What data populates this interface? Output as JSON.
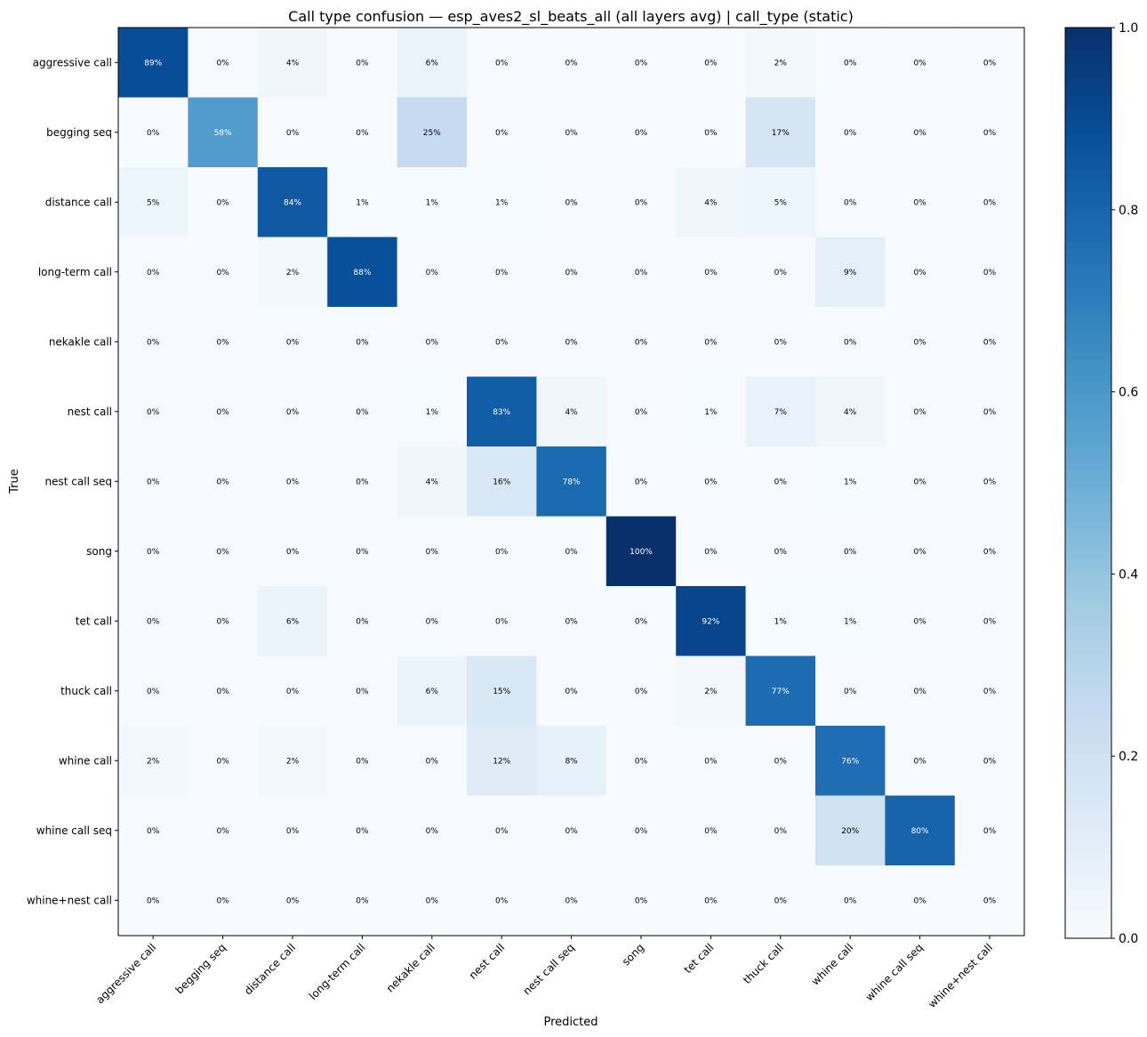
{
  "chart_data": {
    "type": "heatmap",
    "title": "Call type confusion — esp_aves2_sl_beats_all (all layers avg) | call_type (static)",
    "xlabel": "Predicted",
    "ylabel": "True",
    "x_categories": [
      "aggressive call",
      "begging seq",
      "distance call",
      "long-term call",
      "nekakle call",
      "nest call",
      "nest call seq",
      "song",
      "tet call",
      "thuck call",
      "whine call",
      "whine call seq",
      "whine+nest call"
    ],
    "y_categories": [
      "aggressive call",
      "begging seq",
      "distance call",
      "long-term call",
      "nekakle call",
      "nest call",
      "nest call seq",
      "song",
      "tet call",
      "thuck call",
      "whine call",
      "whine call seq",
      "whine+nest call"
    ],
    "values": [
      [
        0.89,
        0,
        0.04,
        0,
        0.06,
        0,
        0,
        0,
        0,
        0.02,
        0,
        0,
        0
      ],
      [
        0,
        0.58,
        0,
        0,
        0.25,
        0,
        0,
        0,
        0,
        0.17,
        0,
        0,
        0
      ],
      [
        0.05,
        0,
        0.84,
        0.01,
        0.01,
        0.01,
        0,
        0,
        0.04,
        0.05,
        0,
        0,
        0
      ],
      [
        0,
        0,
        0.02,
        0.88,
        0,
        0,
        0,
        0,
        0,
        0,
        0.09,
        0,
        0
      ],
      [
        0,
        0,
        0,
        0,
        0,
        0,
        0,
        0,
        0,
        0,
        0,
        0,
        0
      ],
      [
        0,
        0,
        0,
        0,
        0.01,
        0.83,
        0.04,
        0,
        0.01,
        0.07,
        0.04,
        0,
        0
      ],
      [
        0,
        0,
        0,
        0,
        0.04,
        0.16,
        0.78,
        0,
        0,
        0,
        0.01,
        0,
        0
      ],
      [
        0,
        0,
        0,
        0,
        0,
        0,
        0,
        1.0,
        0,
        0,
        0,
        0,
        0
      ],
      [
        0,
        0,
        0.06,
        0,
        0,
        0,
        0,
        0,
        0.92,
        0.01,
        0.01,
        0,
        0
      ],
      [
        0,
        0,
        0,
        0,
        0.06,
        0.15,
        0,
        0,
        0.02,
        0.77,
        0,
        0,
        0
      ],
      [
        0.02,
        0,
        0.02,
        0,
        0,
        0.12,
        0.08,
        0,
        0,
        0,
        0.76,
        0,
        0
      ],
      [
        0,
        0,
        0,
        0,
        0,
        0,
        0,
        0,
        0,
        0,
        0.2,
        0.8,
        0
      ],
      [
        0,
        0,
        0,
        0,
        0,
        0,
        0,
        0,
        0,
        0,
        0,
        0,
        0
      ]
    ],
    "cell_labels": [
      [
        "89%",
        "0%",
        "4%",
        "0%",
        "6%",
        "0%",
        "0%",
        "0%",
        "0%",
        "2%",
        "0%",
        "0%",
        "0%"
      ],
      [
        "0%",
        "58%",
        "0%",
        "0%",
        "25%",
        "0%",
        "0%",
        "0%",
        "0%",
        "17%",
        "0%",
        "0%",
        "0%"
      ],
      [
        "5%",
        "0%",
        "84%",
        "1%",
        "1%",
        "1%",
        "0%",
        "0%",
        "4%",
        "5%",
        "0%",
        "0%",
        "0%"
      ],
      [
        "0%",
        "0%",
        "2%",
        "88%",
        "0%",
        "0%",
        "0%",
        "0%",
        "0%",
        "0%",
        "9%",
        "0%",
        "0%"
      ],
      [
        "0%",
        "0%",
        "0%",
        "0%",
        "0%",
        "0%",
        "0%",
        "0%",
        "0%",
        "0%",
        "0%",
        "0%",
        "0%"
      ],
      [
        "0%",
        "0%",
        "0%",
        "0%",
        "1%",
        "83%",
        "4%",
        "0%",
        "1%",
        "7%",
        "4%",
        "0%",
        "0%"
      ],
      [
        "0%",
        "0%",
        "0%",
        "0%",
        "4%",
        "16%",
        "78%",
        "0%",
        "0%",
        "0%",
        "1%",
        "0%",
        "0%"
      ],
      [
        "0%",
        "0%",
        "0%",
        "0%",
        "0%",
        "0%",
        "0%",
        "100%",
        "0%",
        "0%",
        "0%",
        "0%",
        "0%"
      ],
      [
        "0%",
        "0%",
        "6%",
        "0%",
        "0%",
        "0%",
        "0%",
        "0%",
        "92%",
        "1%",
        "1%",
        "0%",
        "0%"
      ],
      [
        "0%",
        "0%",
        "0%",
        "0%",
        "6%",
        "15%",
        "0%",
        "0%",
        "2%",
        "77%",
        "0%",
        "0%",
        "0%"
      ],
      [
        "2%",
        "0%",
        "2%",
        "0%",
        "0%",
        "12%",
        "8%",
        "0%",
        "0%",
        "0%",
        "76%",
        "0%",
        "0%"
      ],
      [
        "0%",
        "0%",
        "0%",
        "0%",
        "0%",
        "0%",
        "0%",
        "0%",
        "0%",
        "0%",
        "20%",
        "80%",
        "0%"
      ],
      [
        "0%",
        "0%",
        "0%",
        "0%",
        "0%",
        "0%",
        "0%",
        "0%",
        "0%",
        "0%",
        "0%",
        "0%",
        "0%"
      ]
    ],
    "colormap": "Blues",
    "colorbar": {
      "range": [
        0.0,
        1.0
      ],
      "ticks": [
        0.0,
        0.2,
        0.4,
        0.6,
        0.8,
        1.0
      ],
      "tick_labels": [
        "0.0",
        "0.2",
        "0.4",
        "0.6",
        "0.8",
        "1.0"
      ]
    },
    "colors": {
      "text_dark": "#000000",
      "text_light": "#ffffff"
    }
  }
}
